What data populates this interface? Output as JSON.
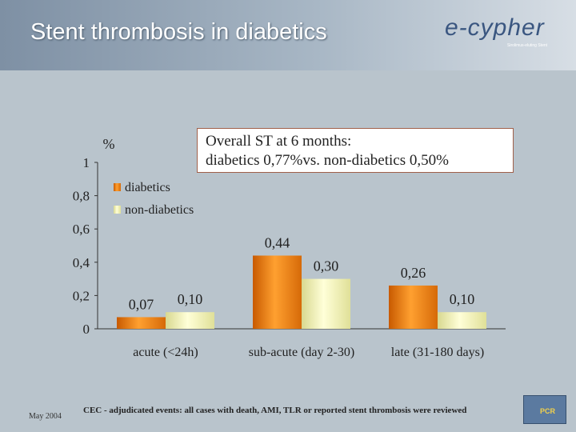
{
  "slide": {
    "title": "Stent thrombosis in diabetics",
    "logo_text": "e-cypher",
    "logo_tagline": "Sirolimus-eluting Stent",
    "date": "May 2004",
    "footer": "CEC - adjudicated events: all cases with death, AMI, TLR or reported stent thrombosis were reviewed",
    "pcr_logo_text": "PCR"
  },
  "note": {
    "line1": "Overall ST at 6 months:",
    "line2": "diabetics 0,77%vs. non-diabetics 0,50%"
  },
  "colors": {
    "diabetics": "#e87a10",
    "non_diabetics": "#f0f0a0",
    "background": "#b9c4cc"
  },
  "chart_data": {
    "type": "bar",
    "title": "",
    "ylabel": "%",
    "xlabel": "",
    "ylim": [
      0,
      1
    ],
    "yticks": [
      0,
      0.2,
      0.4,
      0.6,
      0.8,
      1
    ],
    "ytick_labels": [
      "0",
      "0,2",
      "0,4",
      "0,6",
      "0,8",
      "1"
    ],
    "categories": [
      "acute (<24h)",
      "sub-acute (day 2-30)",
      "late (31-180 days)"
    ],
    "series": [
      {
        "name": "diabetics",
        "values": [
          0.07,
          0.44,
          0.26
        ],
        "labels": [
          "0,07",
          "0,44",
          "0,26"
        ]
      },
      {
        "name": "non-diabetics",
        "values": [
          0.1,
          0.3,
          0.1
        ],
        "labels": [
          "0,10",
          "0,30",
          "0,10"
        ]
      }
    ],
    "legend_position": "top-left"
  }
}
